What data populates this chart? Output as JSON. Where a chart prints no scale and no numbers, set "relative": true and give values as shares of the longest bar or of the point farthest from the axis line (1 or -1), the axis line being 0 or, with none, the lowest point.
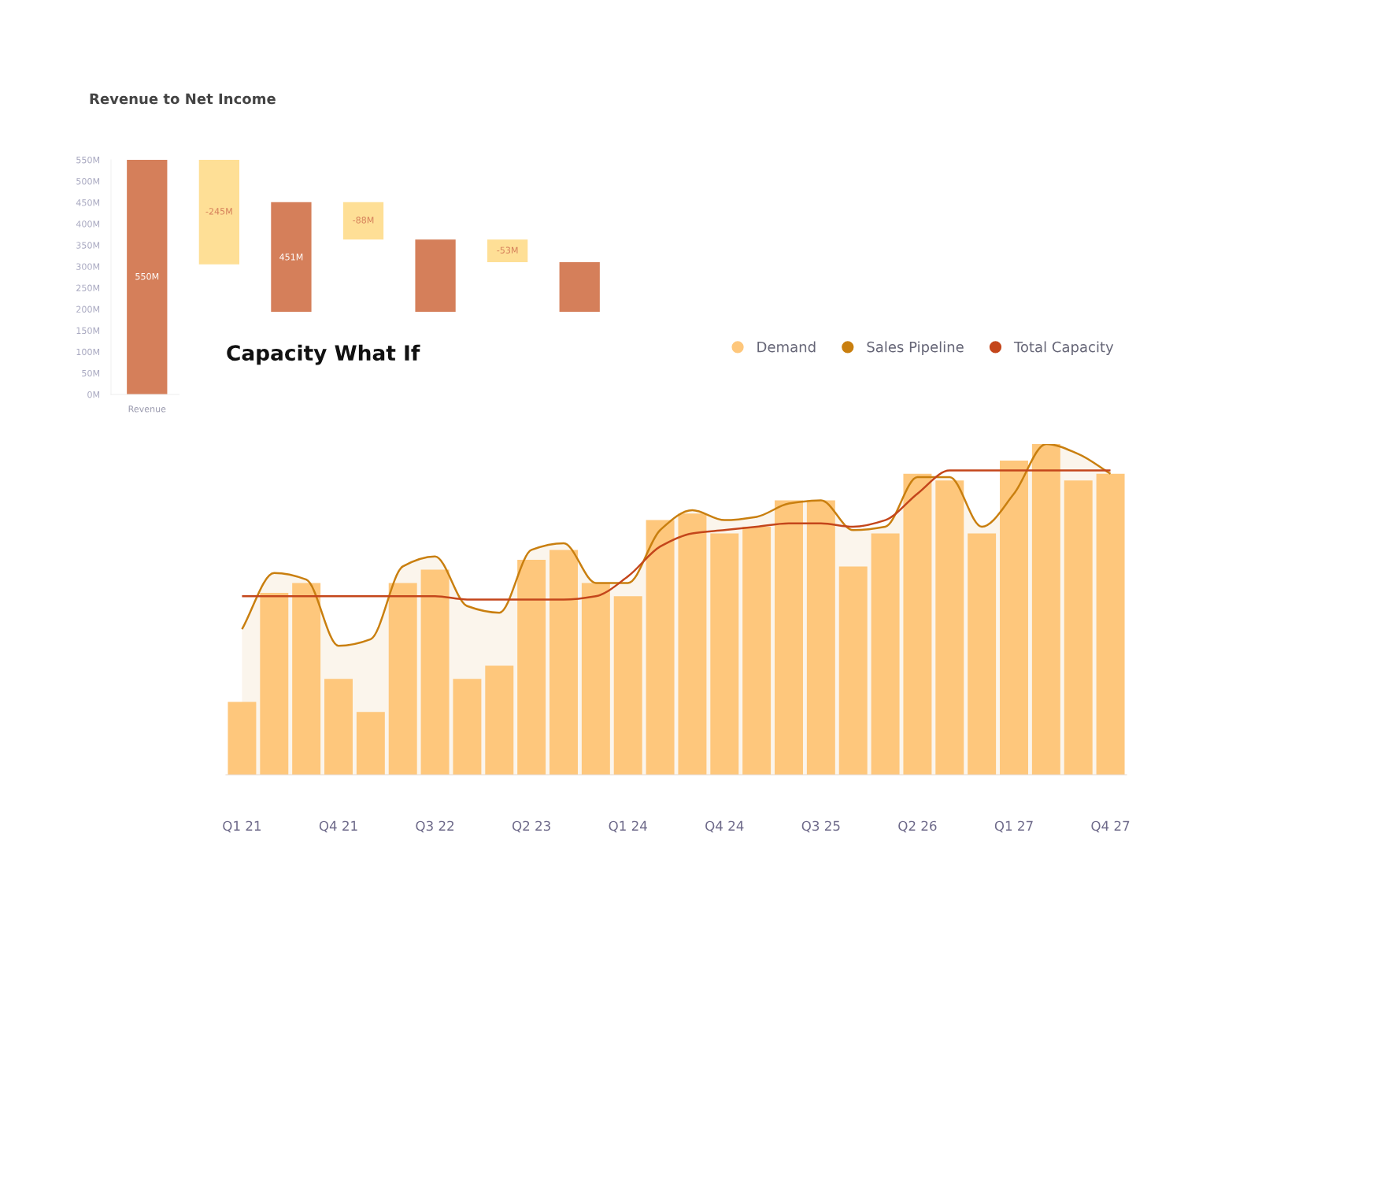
{
  "chart_data": [
    {
      "type": "bar",
      "title": "Revenue to Net Income",
      "categories": [
        "Revenue",
        null,
        null,
        null,
        null,
        null,
        null
      ],
      "values": [
        550,
        -245,
        261,
        -88,
        173,
        -53,
        120
      ],
      "base": [
        0,
        550,
        190,
        451,
        190,
        363,
        190
      ],
      "colors": [
        "#d57f5a",
        "#fedf96",
        "#d57f5a",
        "#fedf96",
        "#d57f5a",
        "#fedf96",
        "#d57f5a"
      ],
      "value_labels": [
        "550M",
        "-245M",
        "451M",
        "-88M",
        null,
        "-53M",
        null
      ],
      "ylim": [
        0,
        550
      ],
      "yticks": [
        {
          "value": 0,
          "label": "0M"
        },
        {
          "value": 50,
          "label": "50M"
        },
        {
          "value": 100,
          "label": "100M"
        },
        {
          "value": 150,
          "label": "150M"
        },
        {
          "value": 200,
          "label": "200M"
        },
        {
          "value": 250,
          "label": "250M"
        },
        {
          "value": 300,
          "label": "300M"
        },
        {
          "value": 350,
          "label": "350M"
        },
        {
          "value": 400,
          "label": "400M"
        },
        {
          "value": 450,
          "label": "450M"
        },
        {
          "value": 500,
          "label": "500M"
        },
        {
          "value": 550,
          "label": "550M"
        }
      ],
      "grid": false
    },
    {
      "type": "bar",
      "title": "Capacity What If",
      "relative": true,
      "legend": "top right",
      "categories": [
        "Q1 21",
        null,
        null,
        "Q4 21",
        null,
        null,
        "Q3 22",
        null,
        null,
        "Q2 23",
        null,
        null,
        "Q1 24",
        null,
        null,
        "Q4 24",
        null,
        null,
        "Q3 25",
        null,
        null,
        "Q2 26",
        null,
        null,
        "Q1 27",
        null,
        null,
        "Q4 27"
      ],
      "series": [
        {
          "name": "Demand",
          "type": "bar",
          "color": "#fec77c",
          "values": [
            0.22,
            0.55,
            0.58,
            0.29,
            0.19,
            0.58,
            0.62,
            0.29,
            0.33,
            0.65,
            0.68,
            0.58,
            0.54,
            0.77,
            0.79,
            0.73,
            0.75,
            0.83,
            0.83,
            0.63,
            0.73,
            0.91,
            0.89,
            0.73,
            0.95,
            1.0,
            0.89,
            0.91
          ]
        },
        {
          "name": "Sales Pipeline",
          "type": "area",
          "color": "#c97f0f",
          "values": [
            0.44,
            0.61,
            0.59,
            0.39,
            0.41,
            0.63,
            0.66,
            0.51,
            0.49,
            0.68,
            0.7,
            0.58,
            0.58,
            0.74,
            0.8,
            0.77,
            0.78,
            0.82,
            0.83,
            0.74,
            0.75,
            0.9,
            0.9,
            0.75,
            0.85,
            1.0,
            0.97,
            0.91
          ]
        },
        {
          "name": "Total Capacity",
          "type": "line",
          "color": "#c4461b",
          "values": [
            0.54,
            0.54,
            0.54,
            0.54,
            0.54,
            0.54,
            0.54,
            0.53,
            0.53,
            0.53,
            0.53,
            0.54,
            0.6,
            0.69,
            0.73,
            0.74,
            0.75,
            0.76,
            0.76,
            0.75,
            0.77,
            0.85,
            0.92,
            0.92,
            0.92,
            0.92,
            0.92,
            0.92
          ]
        }
      ],
      "grid": false
    }
  ]
}
